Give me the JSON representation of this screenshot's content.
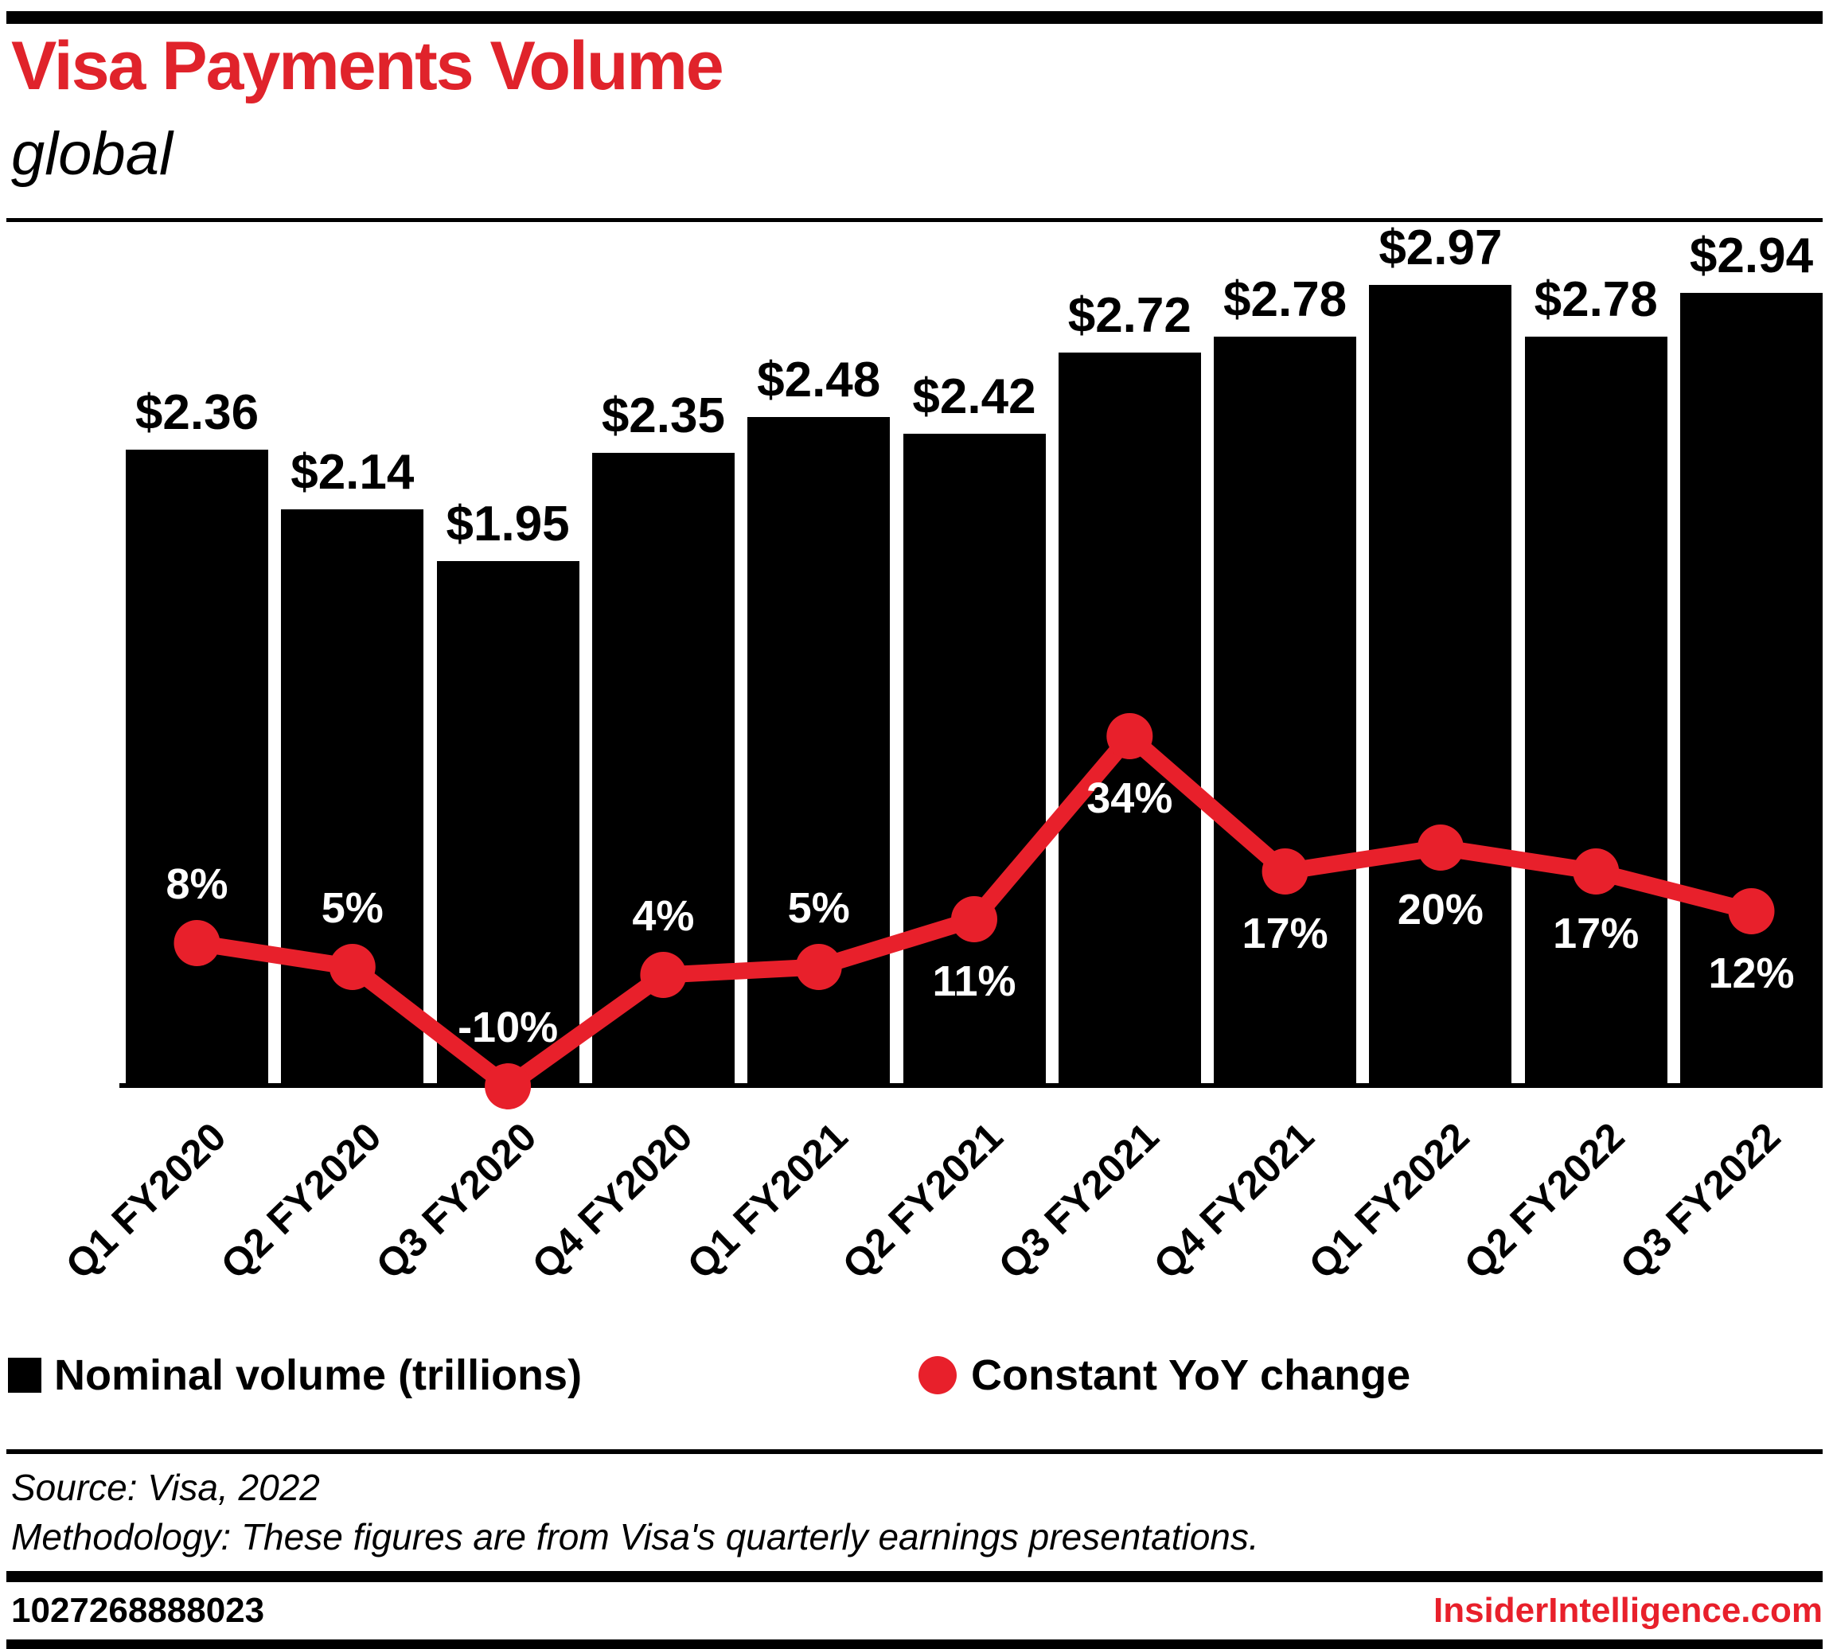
{
  "header": {
    "title": "Visa Payments Volume",
    "subtitle": "global"
  },
  "chart_data": {
    "type": "bar",
    "subtype": "bar-line-combo",
    "categories": [
      "Q1 FY2020",
      "Q2 FY2020",
      "Q3 FY2020",
      "Q4 FY2020",
      "Q1 FY2021",
      "Q2 FY2021",
      "Q3 FY2021",
      "Q4 FY2021",
      "Q1 FY2022",
      "Q2 FY2022",
      "Q3 FY2022"
    ],
    "series": [
      {
        "name": "Nominal volume (trillions)",
        "type": "bar",
        "color": "#000000",
        "values": [
          2.36,
          2.14,
          1.95,
          2.35,
          2.48,
          2.42,
          2.72,
          2.78,
          2.97,
          2.78,
          2.94
        ],
        "labels": [
          "$2.36",
          "$2.14",
          "$1.95",
          "$2.35",
          "$2.48",
          "$2.42",
          "$2.72",
          "$2.78",
          "$2.97",
          "$2.78",
          "$2.94"
        ]
      },
      {
        "name": "Constant YoY change",
        "type": "line",
        "color": "#e8202b",
        "values": [
          8,
          5,
          -10,
          4,
          5,
          11,
          34,
          17,
          20,
          17,
          12
        ],
        "labels": [
          "8%",
          "5%",
          "-10%",
          "4%",
          "5%",
          "11%",
          "34%",
          "17%",
          "20%",
          "17%",
          "12%"
        ],
        "label_position": [
          "above",
          "above",
          "above",
          "above",
          "above",
          "below",
          "below",
          "below",
          "below",
          "below",
          "below"
        ]
      }
    ],
    "ylim_bars": [
      0,
      2.97
    ],
    "grid": false,
    "y_axis_shown": false,
    "legend_position": "bottom"
  },
  "legend": {
    "items": [
      {
        "label": "Nominal volume (trillions)",
        "swatch": "square",
        "color": "#000000"
      },
      {
        "label": "Constant YoY change",
        "swatch": "circle",
        "color": "#e8202b"
      }
    ]
  },
  "footer": {
    "source": "Source: Visa, 2022",
    "methodology": "Methodology: These figures are from Visa's quarterly earnings presentations.",
    "chart_id": "1027268888023",
    "site": "InsiderIntelligence.com"
  },
  "colors": {
    "title_red": "#e0232b",
    "line_red": "#e8202b",
    "bar_black": "#000000"
  }
}
